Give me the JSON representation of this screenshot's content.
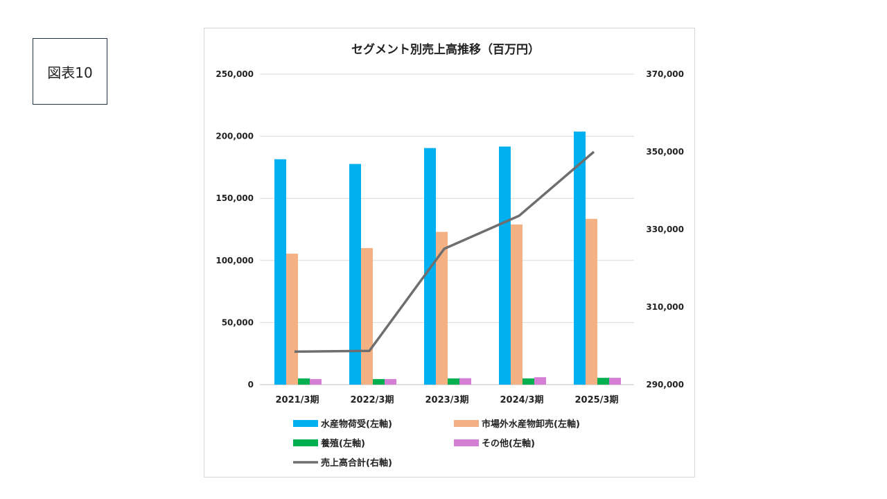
{
  "figure_label": "図表10",
  "chart_data": {
    "type": "bar",
    "title": "セグメント別売上高推移（百万円）",
    "categories": [
      "2021/3期",
      "2022/3期",
      "2023/3期",
      "2024/3期",
      "2025/3期"
    ],
    "series": [
      {
        "name": "水産物荷受(左軸)",
        "type": "bar",
        "axis": "left",
        "color": "#00b0f0",
        "values": [
          181500,
          177700,
          190500,
          191700,
          203800
        ]
      },
      {
        "name": "市場外水産物卸売(左軸)",
        "type": "bar",
        "axis": "left",
        "color": "#f4b183",
        "values": [
          105500,
          110000,
          123000,
          129000,
          133500
        ]
      },
      {
        "name": "養殖(左軸)",
        "type": "bar",
        "axis": "left",
        "color": "#00b050",
        "values": [
          5000,
          4500,
          5000,
          5000,
          5500
        ]
      },
      {
        "name": "その他(左軸)",
        "type": "bar",
        "axis": "left",
        "color": "#d47fd4",
        "values": [
          4500,
          4500,
          5200,
          6000,
          5500
        ]
      },
      {
        "name": "売上高合計(右軸)",
        "type": "line",
        "axis": "right",
        "color": "#6e6e6e",
        "values": [
          298500,
          298700,
          325000,
          333500,
          350000
        ]
      }
    ],
    "y_left": {
      "min": 0,
      "max": 250000,
      "ticks": [
        "0",
        "50,000",
        "100,000",
        "150,000",
        "200,000",
        "250,000"
      ]
    },
    "y_right": {
      "min": 290000,
      "max": 370000,
      "ticks": [
        "290,000",
        "310,000",
        "330,000",
        "350,000",
        "370,000"
      ]
    },
    "grid": true,
    "legend_position": "bottom"
  }
}
